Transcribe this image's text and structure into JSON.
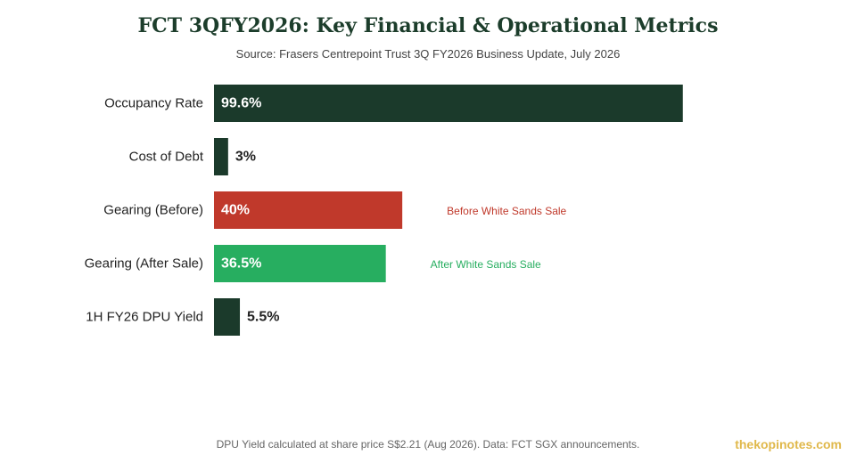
{
  "title": "FCT 3QFY2026: Key Financial & Operational Metrics",
  "subtitle": "Source: Frasers Centrepoint Trust 3Q FY2026 Business Update, July 2026",
  "footnote": "DPU Yield calculated at share price S$2.21 (Aug 2026). Data: FCT SGX announcements.",
  "brand": "thekopinotes.com",
  "chart_data": {
    "type": "bar",
    "orientation": "horizontal",
    "title": "FCT 3QFY2026: Key Financial & Operational Metrics",
    "subtitle": "Source: Frasers Centrepoint Trust 3Q FY2026 Business Update, July 2026",
    "xlabel": "",
    "ylabel": "",
    "xlim": [
      0,
      104
    ],
    "grid": false,
    "legend": "none",
    "categories": [
      "Occupancy Rate",
      "Cost of Debt",
      "Gearing (Before)",
      "Gearing (After Sale)",
      "1H FY26 DPU Yield"
    ],
    "values": [
      99.6,
      3,
      40,
      36.5,
      5.5
    ],
    "labels": [
      "99.6%",
      "3%",
      "40%",
      "36.5%",
      "5.5%"
    ],
    "colors": [
      "#1b3a2b",
      "#1b3a2b",
      "#c0392b",
      "#27ae60",
      "#1b3a2b"
    ],
    "annotations": [
      "",
      "",
      "Before White Sands Sale",
      "After White Sands Sale",
      ""
    ]
  }
}
